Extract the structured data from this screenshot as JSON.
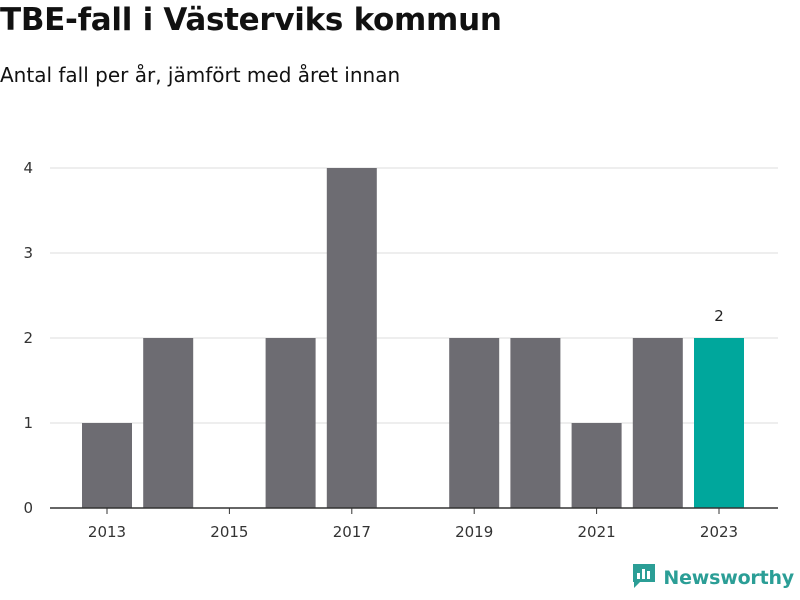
{
  "header": {
    "title": "TBE-fall i Västerviks kommun",
    "subtitle": "Antal fall per år, jämfört med året innan"
  },
  "brand": {
    "name": "Newsworthy",
    "icon": "newsworthy-logo-icon",
    "color": "#2b9e96"
  },
  "chart_data": {
    "type": "bar",
    "categories": [
      "2013",
      "2014",
      "2015",
      "2016",
      "2017",
      "2018",
      "2019",
      "2020",
      "2021",
      "2022",
      "2023"
    ],
    "values": [
      1,
      2,
      0,
      2,
      4,
      0,
      2,
      2,
      1,
      2,
      2
    ],
    "x_tick_labels": [
      "2013",
      "2015",
      "2017",
      "2019",
      "2021",
      "2023"
    ],
    "y_ticks": [
      0,
      1,
      2,
      3,
      4
    ],
    "ylim": [
      0,
      4
    ],
    "grid": true,
    "bar_color": "#6d6c72",
    "highlight_color": "#00a79c",
    "highlight_category": "2023",
    "data_labels": [
      {
        "category": "2023",
        "text": "2"
      }
    ],
    "title": "TBE-fall i Västerviks kommun",
    "subtitle": "Antal fall per år, jämfört med året innan",
    "xlabel": "",
    "ylabel": ""
  }
}
